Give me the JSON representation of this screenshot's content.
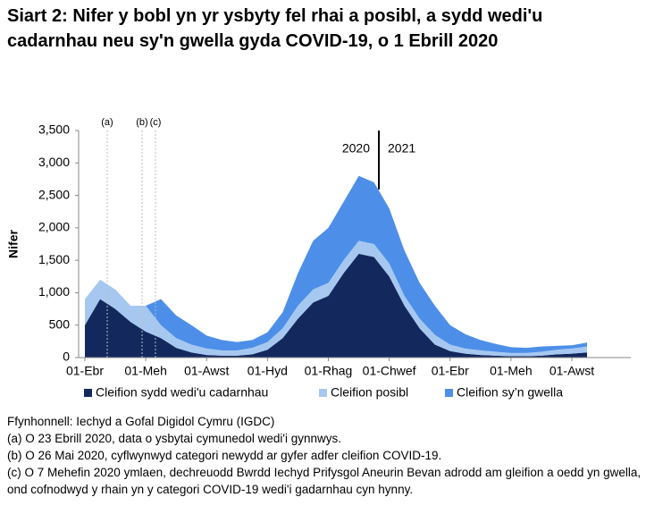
{
  "chart_data": {
    "type": "stacked-area",
    "title": "Siart 2: Nifer y bobl yn yr ysbyty fel rhai a posibl, a sydd wedi'u cadarnhau neu sy'n gwella gyda COVID-19, o 1 Ebrill 2020",
    "y_label": "Nifer",
    "categories": [
      "01-Ebr",
      null,
      null,
      null,
      "01-Meh",
      null,
      null,
      null,
      "01-Awst",
      null,
      null,
      null,
      "01-Hyd",
      null,
      null,
      null,
      "01-Rhag",
      null,
      null,
      null,
      "01-Chwef",
      null,
      null,
      null,
      "01-Ebr",
      null,
      null,
      null,
      "01-Meh",
      null,
      null,
      null,
      "01-Awst",
      null
    ],
    "series": [
      {
        "name": "Cleifion sydd wedi'u cadarnhau",
        "color": "#13295e",
        "values": [
          500,
          900,
          750,
          550,
          400,
          300,
          150,
          80,
          40,
          30,
          30,
          50,
          120,
          300,
          600,
          850,
          950,
          1300,
          1600,
          1550,
          1250,
          800,
          450,
          200,
          100,
          60,
          40,
          30,
          20,
          20,
          30,
          50,
          60,
          80
        ]
      },
      {
        "name": "Cleifion posibl",
        "color": "#a6c8f0",
        "values": [
          400,
          300,
          300,
          250,
          400,
          200,
          150,
          120,
          100,
          80,
          80,
          100,
          120,
          150,
          200,
          200,
          200,
          200,
          200,
          200,
          200,
          150,
          150,
          150,
          100,
          80,
          70,
          60,
          50,
          50,
          60,
          70,
          80,
          90
        ]
      },
      {
        "name": "Cleifion sy’n gwella",
        "color": "#4d8fe8",
        "values": [
          0,
          0,
          0,
          0,
          0,
          400,
          350,
          300,
          200,
          160,
          130,
          120,
          150,
          250,
          500,
          750,
          850,
          900,
          1000,
          950,
          850,
          700,
          550,
          450,
          300,
          220,
          160,
          120,
          90,
          80,
          80,
          60,
          50,
          60
        ]
      }
    ],
    "ylim": [
      0,
      3500
    ],
    "yticks": [
      0,
      500,
      {
        "value": 1000,
        "label": "1,000"
      },
      {
        "value": 1500,
        "label": "1,500"
      },
      {
        "value": 2000,
        "label": "2,000"
      },
      {
        "value": 2500,
        "label": "2,500"
      },
      {
        "value": 3000,
        "label": "3,000"
      },
      {
        "value": 3500,
        "label": "3,500"
      }
    ],
    "annotations": [
      "(a)",
      "(b)",
      "(c)",
      "2020",
      "2021"
    ],
    "notes": [
      "Ffynhonnell: Iechyd a Gofal Digidol Cymru (IGDC)",
      "(a) O 23 Ebrill 2020, data o ysbytai cymunedol wedi'i gynnwys.",
      "(b) O 26 Mai 2020, cyflwynwyd categori newydd ar gyfer adfer cleifion COVID-19.",
      "(c) O 7 Mehefin 2020 ymlaen, dechreuodd Bwrdd Iechyd Prifysgol Aneurin Bevan adrodd am gleifion a oedd yn gwella, ond cofnodwyd y rhain yn y categori COVID-19 wedi'i gadarnhau cyn hynny."
    ]
  }
}
